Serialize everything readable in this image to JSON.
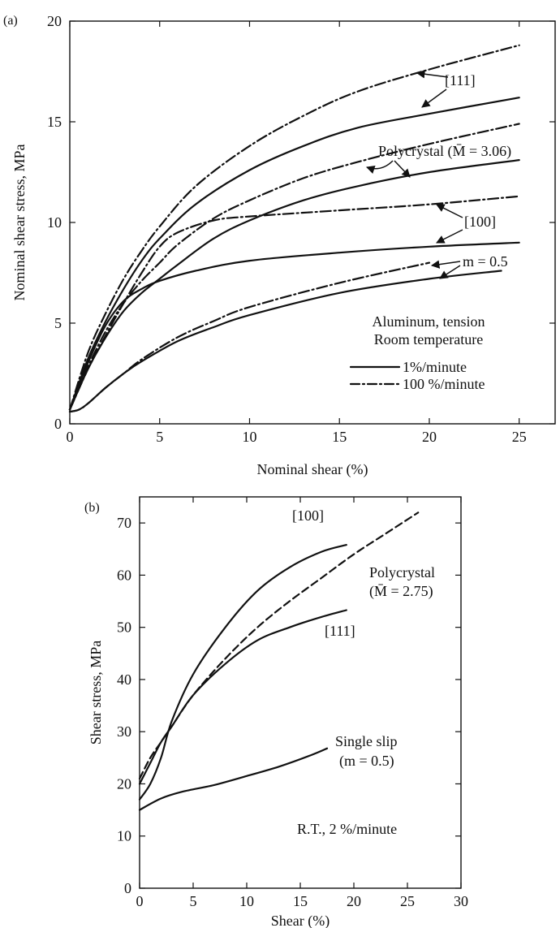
{
  "chart_data": [
    {
      "panel": "(a)",
      "type": "line",
      "xlabel": "Nominal shear (%)",
      "ylabel": "Nominal shear stress, MPa",
      "xlim": [
        0,
        27
      ],
      "ylim": [
        0,
        20
      ],
      "xticks": [
        0,
        5,
        10,
        15,
        20,
        25
      ],
      "yticks": [
        0,
        5,
        10,
        15,
        20
      ],
      "legend": {
        "placement": "lower-right",
        "title_lines": [
          "Aluminum, tension",
          "Room temperature"
        ],
        "entries": [
          {
            "label": "1%/minute",
            "style": "solid"
          },
          {
            "label": "100 %/minute",
            "style": "dashed"
          }
        ]
      },
      "annotations": [
        {
          "text": "[111]"
        },
        {
          "text": "Polycrystal (M̄ = 3.06)"
        },
        {
          "text": "[100]"
        },
        {
          "text": "m = 0.5"
        }
      ],
      "series": [
        {
          "group": "[111]",
          "style": "dashed",
          "x": [
            0,
            1,
            2,
            3,
            4,
            5,
            7,
            10,
            13,
            16,
            20,
            25
          ],
          "y": [
            0.7,
            3.5,
            5.5,
            7.2,
            8.6,
            9.8,
            11.8,
            13.8,
            15.3,
            16.5,
            17.6,
            18.8
          ]
        },
        {
          "group": "[111]",
          "style": "solid",
          "x": [
            0,
            1,
            2,
            3,
            4,
            5,
            7,
            10,
            13,
            16,
            20,
            25
          ],
          "y": [
            0.7,
            3.2,
            5.1,
            6.7,
            8.1,
            9.2,
            10.9,
            12.6,
            13.8,
            14.7,
            15.4,
            16.2
          ]
        },
        {
          "group": "Polycrystal",
          "style": "dashed",
          "x": [
            0,
            1,
            2,
            3,
            4,
            5,
            6,
            8,
            10,
            13,
            16,
            20,
            25
          ],
          "y": [
            0.7,
            2.8,
            4.6,
            6.0,
            7.1,
            8.0,
            8.9,
            10.2,
            11.1,
            12.2,
            13.0,
            13.9,
            14.9
          ]
        },
        {
          "group": "Polycrystal",
          "style": "solid",
          "x": [
            0,
            1,
            2,
            3,
            4,
            5,
            6,
            8,
            10,
            13,
            16,
            20,
            25
          ],
          "y": [
            0.7,
            2.7,
            4.3,
            5.6,
            6.5,
            7.2,
            7.9,
            9.2,
            10.1,
            11.1,
            11.8,
            12.5,
            13.1
          ]
        },
        {
          "group": "[100]",
          "style": "dashed",
          "x": [
            0,
            1,
            2,
            3,
            4,
            5,
            6,
            8,
            10,
            15,
            20,
            25
          ],
          "y": [
            0.7,
            2.7,
            4.4,
            6.0,
            7.5,
            8.8,
            9.5,
            10.1,
            10.3,
            10.6,
            10.9,
            11.3
          ]
        },
        {
          "group": "[100]",
          "style": "solid",
          "x": [
            0,
            1,
            2,
            3,
            4,
            5,
            7,
            10,
            15,
            20,
            25
          ],
          "y": [
            0.7,
            3.0,
            4.9,
            6.1,
            6.7,
            7.1,
            7.6,
            8.1,
            8.5,
            8.8,
            9.0
          ]
        },
        {
          "group": "m = 0.5",
          "style": "dashed",
          "x": [
            0,
            0.5,
            1,
            2,
            3,
            4,
            6,
            8,
            10,
            15,
            20
          ],
          "y": [
            0.6,
            0.7,
            1.0,
            1.8,
            2.5,
            3.2,
            4.3,
            5.1,
            5.8,
            7.0,
            8.0
          ]
        },
        {
          "group": "m = 0.5",
          "style": "solid",
          "x": [
            0,
            0.5,
            1,
            2,
            3,
            4,
            6,
            8,
            10,
            15,
            20,
            24
          ],
          "y": [
            0.6,
            0.7,
            1.0,
            1.8,
            2.5,
            3.1,
            4.1,
            4.8,
            5.4,
            6.5,
            7.2,
            7.6
          ]
        }
      ]
    },
    {
      "panel": "(b)",
      "type": "line",
      "xlabel": "Shear (%)",
      "ylabel": "Shear stress, MPa",
      "xlim": [
        0,
        30
      ],
      "ylim": [
        0,
        75
      ],
      "xticks": [
        0,
        5,
        10,
        15,
        20,
        25,
        30
      ],
      "yticks": [
        0,
        10,
        20,
        30,
        40,
        50,
        60,
        70
      ],
      "annotations": [
        {
          "text": "[100]"
        },
        {
          "text": "Polycrystal"
        },
        {
          "text": "(M̄ = 2.75)"
        },
        {
          "text": "[111]"
        },
        {
          "text": "Single slip"
        },
        {
          "text": "(m = 0.5)"
        },
        {
          "text": "R.T., 2 %/minute"
        }
      ],
      "series": [
        {
          "group": "[100]",
          "style": "solid",
          "x": [
            0,
            1,
            2,
            3,
            5,
            8,
            11,
            14,
            17,
            19.3
          ],
          "y": [
            17,
            20,
            25,
            32,
            41,
            50,
            57,
            61.5,
            64.5,
            65.8
          ]
        },
        {
          "group": "[111]",
          "style": "solid",
          "x": [
            0,
            1,
            2,
            3,
            5,
            8,
            11,
            14,
            17,
            19.3
          ],
          "y": [
            20,
            24,
            28,
            31,
            37,
            43,
            47.5,
            50,
            52,
            53.3
          ]
        },
        {
          "group": "Polycrystal",
          "style": "dashed",
          "x": [
            0,
            1,
            2,
            3,
            5,
            8,
            11,
            14,
            17,
            20,
            23,
            26
          ],
          "y": [
            21,
            25,
            28,
            31,
            37,
            44,
            50,
            55,
            59.5,
            64,
            68,
            72
          ]
        },
        {
          "group": "Single slip",
          "style": "solid",
          "x": [
            0,
            2,
            4,
            7,
            10,
            13,
            16,
            17.5
          ],
          "y": [
            15,
            17.2,
            18.5,
            19.8,
            21.5,
            23.3,
            25.5,
            26.8
          ]
        }
      ]
    }
  ]
}
